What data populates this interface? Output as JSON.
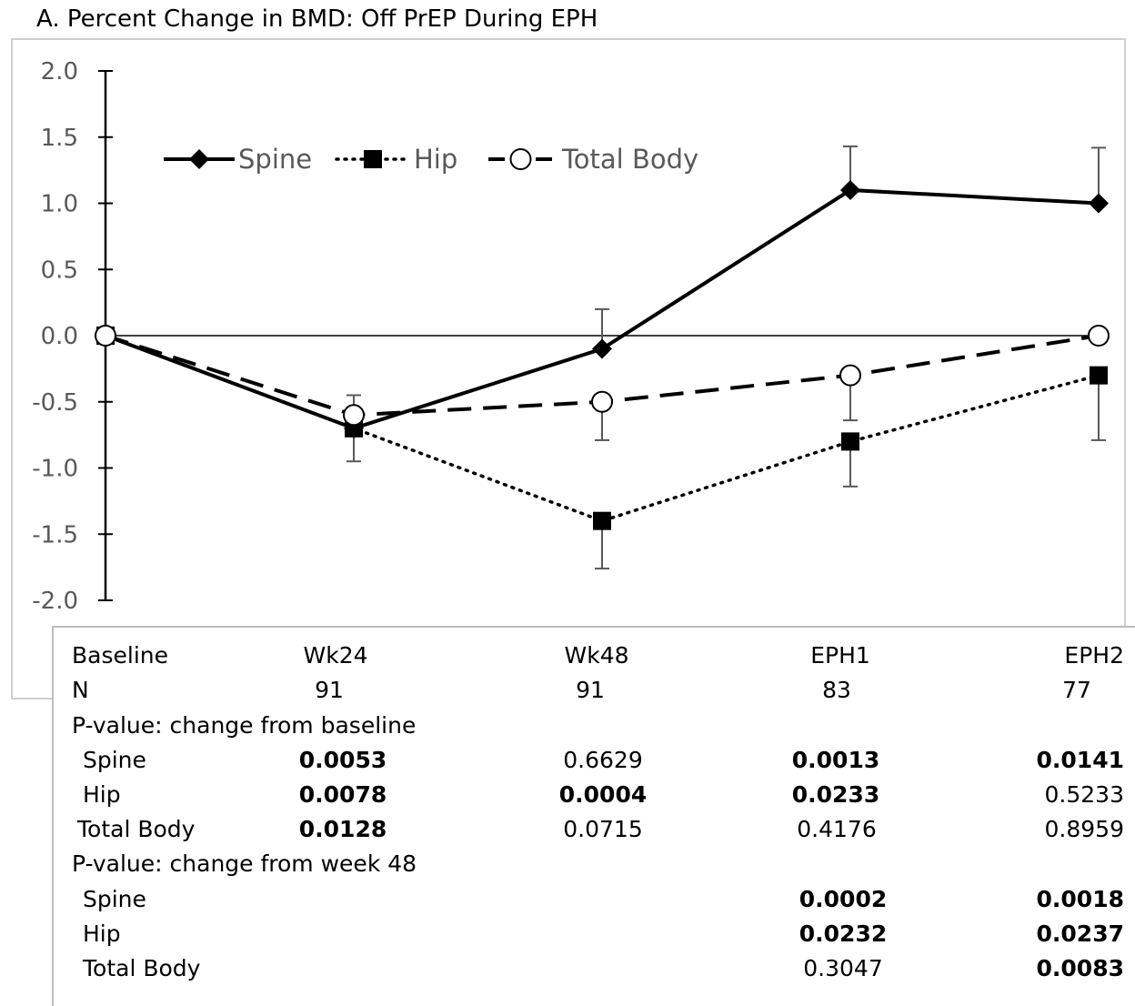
{
  "figure": {
    "title": "A. Percent Change in BMD: Off PrEP During EPH"
  },
  "chart_data": {
    "type": "line",
    "title": "A. Percent Change in BMD: Off PrEP During EPH",
    "categories": [
      "Baseline",
      "Wk24",
      "Wk48",
      "EPH1",
      "EPH2"
    ],
    "ylim": [
      -2.0,
      2.0
    ],
    "yticks": [
      "2.0",
      "1.5",
      "1.0",
      "0.5",
      "0.0",
      "-0.5",
      "-1.0",
      "-1.5",
      "-2.0"
    ],
    "ytick_values": [
      2.0,
      1.5,
      1.0,
      0.5,
      0.0,
      -0.5,
      -1.0,
      -1.5,
      -2.0
    ],
    "grid": false,
    "legend_position": "top-left",
    "series": [
      {
        "name": "Spine",
        "values": [
          0.0,
          -0.7,
          -0.1,
          1.1,
          1.0
        ],
        "error_upper": [
          null,
          null,
          0.2,
          1.43,
          1.42
        ],
        "marker": "diamond-filled",
        "line": "solid",
        "color": "#000000"
      },
      {
        "name": "Hip",
        "values": [
          0.0,
          -0.7,
          -1.4,
          -0.8,
          -0.3
        ],
        "error_lower": [
          null,
          -0.95,
          -1.76,
          -1.14,
          -0.79
        ],
        "marker": "square-filled",
        "line": "dotted",
        "color": "#000000"
      },
      {
        "name": "Total Body",
        "values": [
          0.0,
          -0.6,
          -0.5,
          -0.3,
          0.0
        ],
        "error_upper": [
          null,
          -0.45,
          null,
          null,
          null
        ],
        "error_lower": [
          null,
          null,
          -0.79,
          -0.64,
          null
        ],
        "marker": "circle-open",
        "line": "dashed",
        "color": "#000000"
      }
    ]
  },
  "table": {
    "header": [
      "Baseline",
      "Wk24",
      "Wk48",
      "EPH1",
      "EPH2"
    ],
    "n_label": "N",
    "n_values": [
      "91",
      "91",
      "83",
      "77"
    ],
    "section1_title": "P-value: change from baseline",
    "section1_rows": [
      {
        "label": "Spine",
        "values": [
          "0.0053",
          "0.6629",
          "0.0013",
          "0.0141"
        ],
        "bold": [
          true,
          false,
          true,
          true
        ]
      },
      {
        "label": "Hip",
        "values": [
          "0.0078",
          "0.0004",
          "0.0233",
          "0.5233"
        ],
        "bold": [
          true,
          true,
          true,
          false
        ]
      },
      {
        "label": "Total Body",
        "values": [
          "0.0128",
          "0.0715",
          "0.4176",
          "0.8959"
        ],
        "bold": [
          true,
          false,
          false,
          false
        ]
      }
    ],
    "section2_title": "P-value: change from week 48",
    "section2_rows": [
      {
        "label": "Spine",
        "values": [
          "0.0002",
          "0.0018"
        ],
        "bold": [
          true,
          true
        ]
      },
      {
        "label": "Hip",
        "values": [
          "0.0232",
          "0.0237"
        ],
        "bold": [
          true,
          true
        ]
      },
      {
        "label": "Total Body",
        "values": [
          "0.3047",
          "0.0083"
        ],
        "bold": [
          false,
          true
        ]
      }
    ]
  }
}
